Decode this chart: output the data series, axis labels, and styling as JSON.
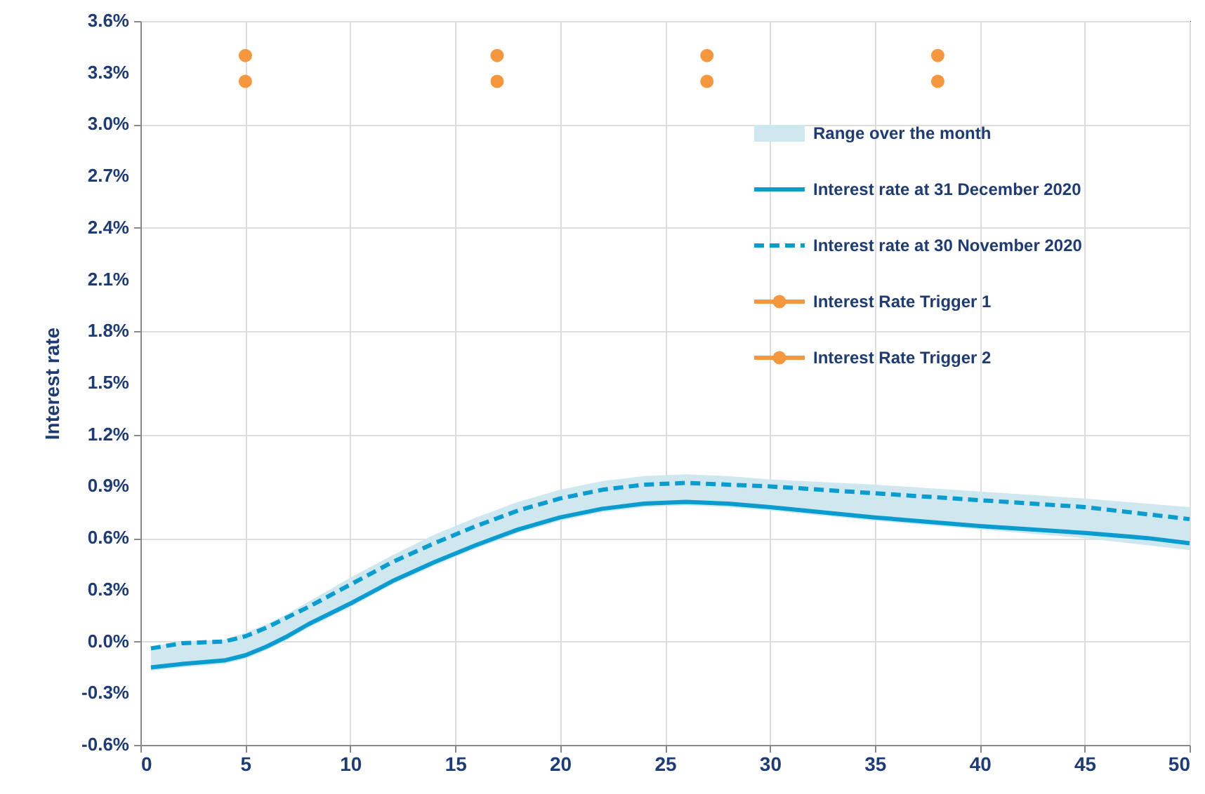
{
  "chart_data": {
    "type": "line",
    "ylabel": "Interest rate",
    "xlim": [
      0,
      50
    ],
    "xticks": [
      0,
      5,
      10,
      15,
      20,
      25,
      30,
      35,
      40,
      45,
      50
    ],
    "ylim": [
      -0.6,
      3.6
    ],
    "yticks": [
      {
        "value": -0.6,
        "label": "-0.6%"
      },
      {
        "value": -0.3,
        "label": "-0.3%"
      },
      {
        "value": 0,
        "label": "0.0%"
      },
      {
        "value": 0.3,
        "label": "0.3%"
      },
      {
        "value": 0.6,
        "label": "0.6%"
      },
      {
        "value": 0.9,
        "label": "0.9%"
      },
      {
        "value": 1.2,
        "label": "1.2%"
      },
      {
        "value": 1.5,
        "label": "1.5%"
      },
      {
        "value": 1.8,
        "label": "1.8%"
      },
      {
        "value": 2.1,
        "label": "2.1%"
      },
      {
        "value": 2.4,
        "label": "2.4%"
      },
      {
        "value": 2.7,
        "label": "2.7%"
      },
      {
        "value": 3.0,
        "label": "3.0%"
      },
      {
        "value": 3.3,
        "label": "3.3%"
      },
      {
        "value": 3.6,
        "label": "3.6%"
      }
    ],
    "grid": true,
    "legend": "top right",
    "series": [
      {
        "name": "Range over the month",
        "type": "area",
        "color": "#cfe8f0",
        "x": [
          0.5,
          2,
          4,
          5,
          6,
          7,
          8,
          10,
          12,
          14,
          16,
          18,
          20,
          22,
          24,
          26,
          28,
          30,
          35,
          40,
          45,
          50
        ],
        "values": [
          null,
          null,
          null,
          null,
          null,
          null,
          null,
          null,
          null,
          null,
          null,
          null,
          null,
          null,
          null,
          null,
          null,
          null,
          null,
          null,
          null,
          null
        ],
        "lower": [
          -0.17,
          -0.15,
          -0.13,
          -0.1,
          -0.05,
          0.01,
          0.08,
          0.2,
          0.33,
          0.44,
          0.54,
          0.63,
          0.7,
          0.75,
          0.78,
          0.79,
          0.78,
          0.76,
          0.7,
          0.65,
          0.6,
          0.53
        ],
        "upper": [
          -0.03,
          0.0,
          0.01,
          0.05,
          0.1,
          0.16,
          0.23,
          0.37,
          0.5,
          0.62,
          0.72,
          0.81,
          0.88,
          0.93,
          0.96,
          0.97,
          0.96,
          0.94,
          0.91,
          0.87,
          0.83,
          0.78
        ]
      },
      {
        "name": "Interest rate at 31 December 2020",
        "type": "line",
        "color": "#0a9bcf",
        "line_style": "solid",
        "x": [
          0.5,
          2,
          3,
          4,
          5,
          6,
          7,
          8,
          10,
          12,
          14,
          16,
          18,
          20,
          22,
          24,
          26,
          28,
          30,
          35,
          40,
          45,
          48,
          50
        ],
        "values": [
          -0.15,
          -0.13,
          -0.12,
          -0.11,
          -0.08,
          -0.03,
          0.03,
          0.1,
          0.22,
          0.35,
          0.46,
          0.56,
          0.65,
          0.72,
          0.77,
          0.8,
          0.81,
          0.8,
          0.78,
          0.72,
          0.67,
          0.63,
          0.6,
          0.57
        ]
      },
      {
        "name": "Interest rate at 30 November 2020",
        "type": "line",
        "color": "#0a9bcf",
        "line_style": "dashed",
        "x": [
          0.5,
          2,
          4,
          5,
          6,
          7,
          8,
          10,
          12,
          14,
          16,
          18,
          20,
          22,
          24,
          26,
          28,
          30,
          35,
          40,
          45,
          50
        ],
        "values": [
          -0.04,
          -0.01,
          0.0,
          0.03,
          0.08,
          0.14,
          0.2,
          0.33,
          0.46,
          0.57,
          0.67,
          0.76,
          0.83,
          0.88,
          0.91,
          0.92,
          0.91,
          0.9,
          0.86,
          0.82,
          0.78,
          0.71
        ]
      },
      {
        "name": "Interest Rate Trigger 1",
        "type": "scatter",
        "marker": "circle",
        "color": "#f5973f",
        "x": [
          5,
          17,
          27,
          38
        ],
        "values": [
          3.4,
          3.4,
          3.4,
          3.4
        ]
      },
      {
        "name": "Interest Rate Trigger 2",
        "type": "scatter",
        "marker": "circle",
        "color": "#f5973f",
        "x": [
          5,
          17,
          27,
          38
        ],
        "values": [
          3.25,
          3.25,
          3.25,
          3.25
        ]
      }
    ]
  }
}
